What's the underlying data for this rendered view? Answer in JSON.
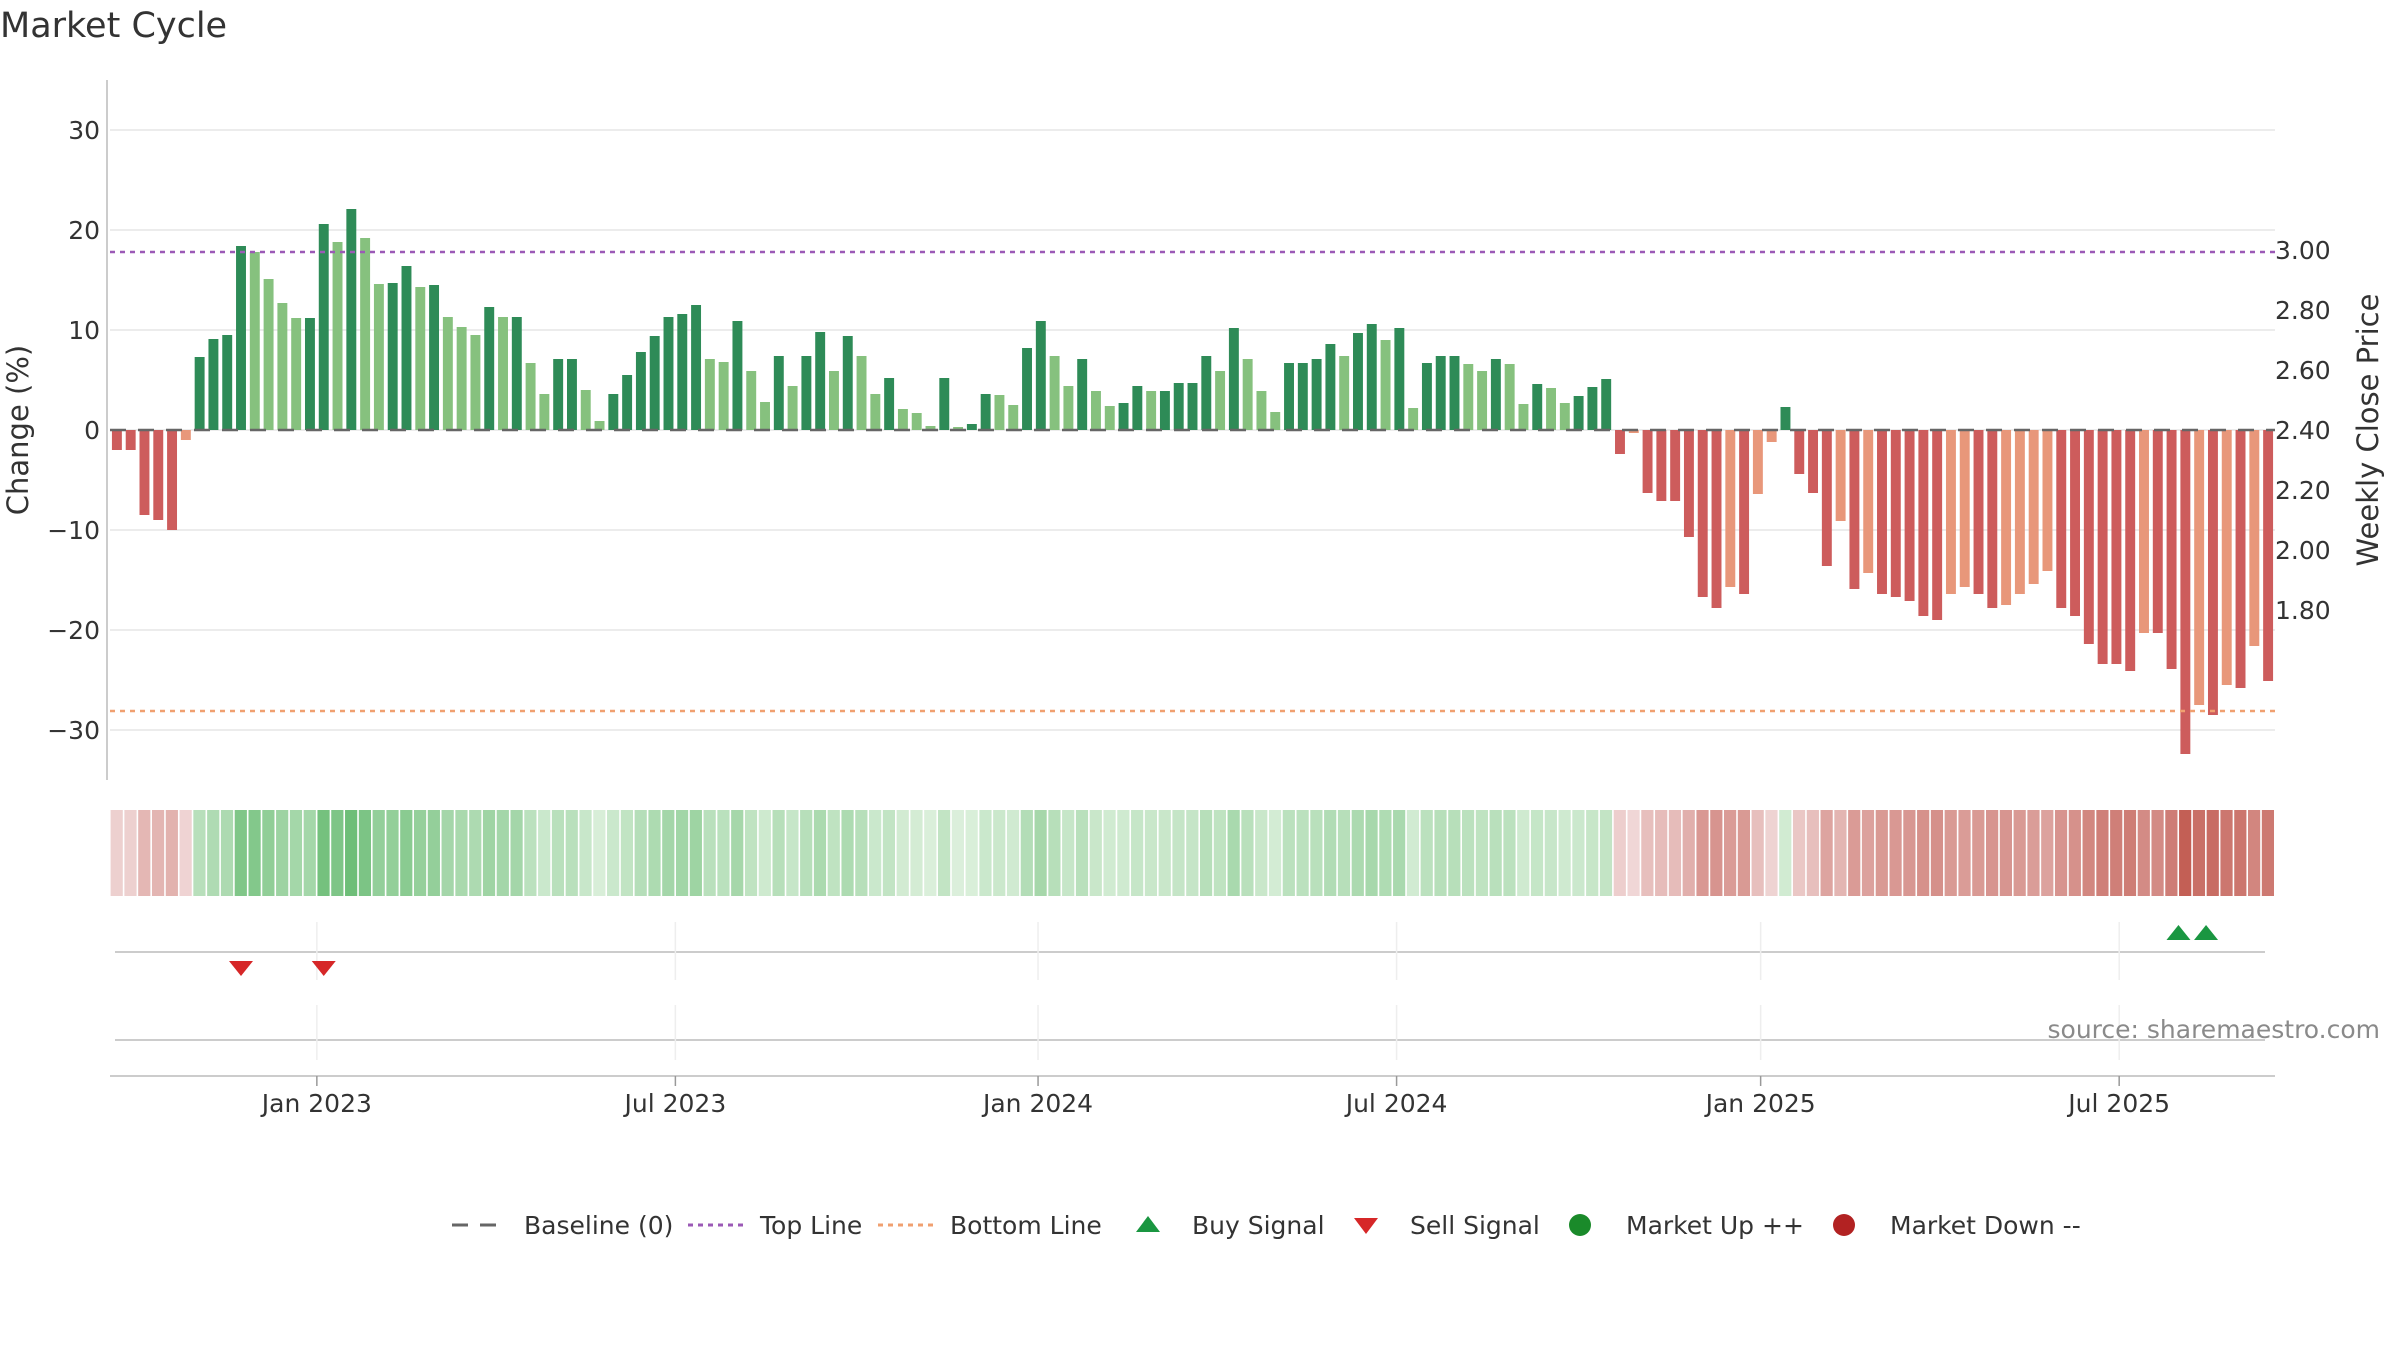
{
  "chart_data": {
    "type": "bar",
    "title": "Market Cycle",
    "source": "source: sharemaestro.com",
    "y_left_label": "Change (%)",
    "y_right_label": "Weekly Close Price",
    "y_left_range": [
      -35,
      35
    ],
    "y_left_ticks": [
      {
        "v": 30,
        "t": "30"
      },
      {
        "v": 20,
        "t": "20"
      },
      {
        "v": 10,
        "t": "10"
      },
      {
        "v": 0,
        "t": "0"
      },
      {
        "v": -10,
        "t": "−10"
      },
      {
        "v": -20,
        "t": "−20"
      },
      {
        "v": -30,
        "t": "−30"
      }
    ],
    "y_right_ticks": [
      {
        "v": 3.0,
        "t": "3.00"
      },
      {
        "v": 2.8,
        "t": "2.80"
      },
      {
        "v": 2.6,
        "t": "2.60"
      },
      {
        "v": 2.4,
        "t": "2.40"
      },
      {
        "v": 2.2,
        "t": "2.20"
      },
      {
        "v": 2.0,
        "t": "2.00"
      },
      {
        "v": 1.8,
        "t": "1.80"
      }
    ],
    "x_tick_labels": [
      {
        "label": "Jan 2023",
        "week": 15
      },
      {
        "label": "Jul 2023",
        "week": 41
      },
      {
        "label": "Jan 2024",
        "week": 67.3
      },
      {
        "label": "Jul 2024",
        "week": 93.3
      },
      {
        "label": "Jan 2025",
        "week": 119.7
      },
      {
        "label": "Jul 2025",
        "week": 145.7
      }
    ],
    "top_line": 17.8,
    "bottom_line": -28.1,
    "weekly_change_pct": [
      -2,
      -2,
      -8.5,
      -9,
      -10,
      -1,
      7.3,
      9.1,
      9.5,
      18.4,
      17.8,
      15.1,
      12.7,
      11.2,
      11.2,
      20.6,
      18.8,
      22.1,
      19.2,
      14.6,
      14.7,
      16.4,
      14.3,
      14.5,
      11.3,
      10.3,
      9.5,
      12.3,
      11.3,
      11.3,
      6.7,
      3.6,
      7.1,
      7.1,
      4,
      0.9,
      3.6,
      5.5,
      7.8,
      9.4,
      11.3,
      11.6,
      12.5,
      7.1,
      6.8,
      10.9,
      5.9,
      2.8,
      7.4,
      4.4,
      7.4,
      9.8,
      5.9,
      9.4,
      7.4,
      3.6,
      5.2,
      2.1,
      1.7,
      0.4,
      5.2,
      0.3,
      0.6,
      3.6,
      3.5,
      2.5,
      8.2,
      10.9,
      7.4,
      4.4,
      7.1,
      3.9,
      2.4,
      2.7,
      4.4,
      3.9,
      3.9,
      4.7,
      4.7,
      7.4,
      5.9,
      10.2,
      7.1,
      3.9,
      1.8,
      6.7,
      6.7,
      7.1,
      8.6,
      7.4,
      9.7,
      10.6,
      9,
      10.2,
      2.2,
      6.7,
      7.4,
      7.4,
      6.6,
      5.9,
      7.1,
      6.6,
      2.6,
      4.6,
      4.2,
      2.7,
      3.4,
      4.3,
      5.1,
      -2.4,
      -0.3,
      -6.3,
      -7.1,
      -7.1,
      -10.7,
      -16.7,
      -17.8,
      -15.7,
      -16.4,
      -6.4,
      -1.2,
      2.3,
      -4.4,
      -6.3,
      -13.6,
      -9.1,
      -15.9,
      -14.3,
      -16.4,
      -16.7,
      -17.1,
      -18.6,
      -19,
      -16.4,
      -15.7,
      -16.4,
      -17.8,
      -17.5,
      -16.4,
      -15.4,
      -14.1,
      -17.8,
      -18.6,
      -21.4,
      -23.4,
      -23.4,
      -24.1,
      -20.3,
      -20.3,
      -23.9,
      -32.4,
      -27.5,
      -28.5,
      -25.5,
      -25.8,
      -21.6,
      -25.1
    ],
    "signals": [
      {
        "type": "sell",
        "week": 9.5
      },
      {
        "type": "sell",
        "week": 15.5
      },
      {
        "type": "buy",
        "week": 150
      },
      {
        "type": "buy",
        "week": 152
      }
    ],
    "legend": [
      {
        "key": "baseline",
        "label": "Baseline (0)"
      },
      {
        "key": "top",
        "label": "Top Line"
      },
      {
        "key": "bottom",
        "label": "Bottom Line"
      },
      {
        "key": "buy",
        "label": "Buy Signal"
      },
      {
        "key": "sell",
        "label": "Sell Signal"
      },
      {
        "key": "up",
        "label": "Market Up ++"
      },
      {
        "key": "down",
        "label": "Market Down --"
      }
    ],
    "colors": {
      "strong_up": "#2e8b57",
      "light_up": "#86c17e",
      "strong_down": "#cd5c5c",
      "light_down": "#e8977a",
      "top_line": "#9b59b6",
      "bottom_line": "#f0a070",
      "baseline": "#666666",
      "buy": "#1a9641",
      "sell": "#d62728",
      "market_up_dot": "#1a8a2a",
      "market_down_dot": "#b22222",
      "grid": "#e6e6e6"
    }
  }
}
